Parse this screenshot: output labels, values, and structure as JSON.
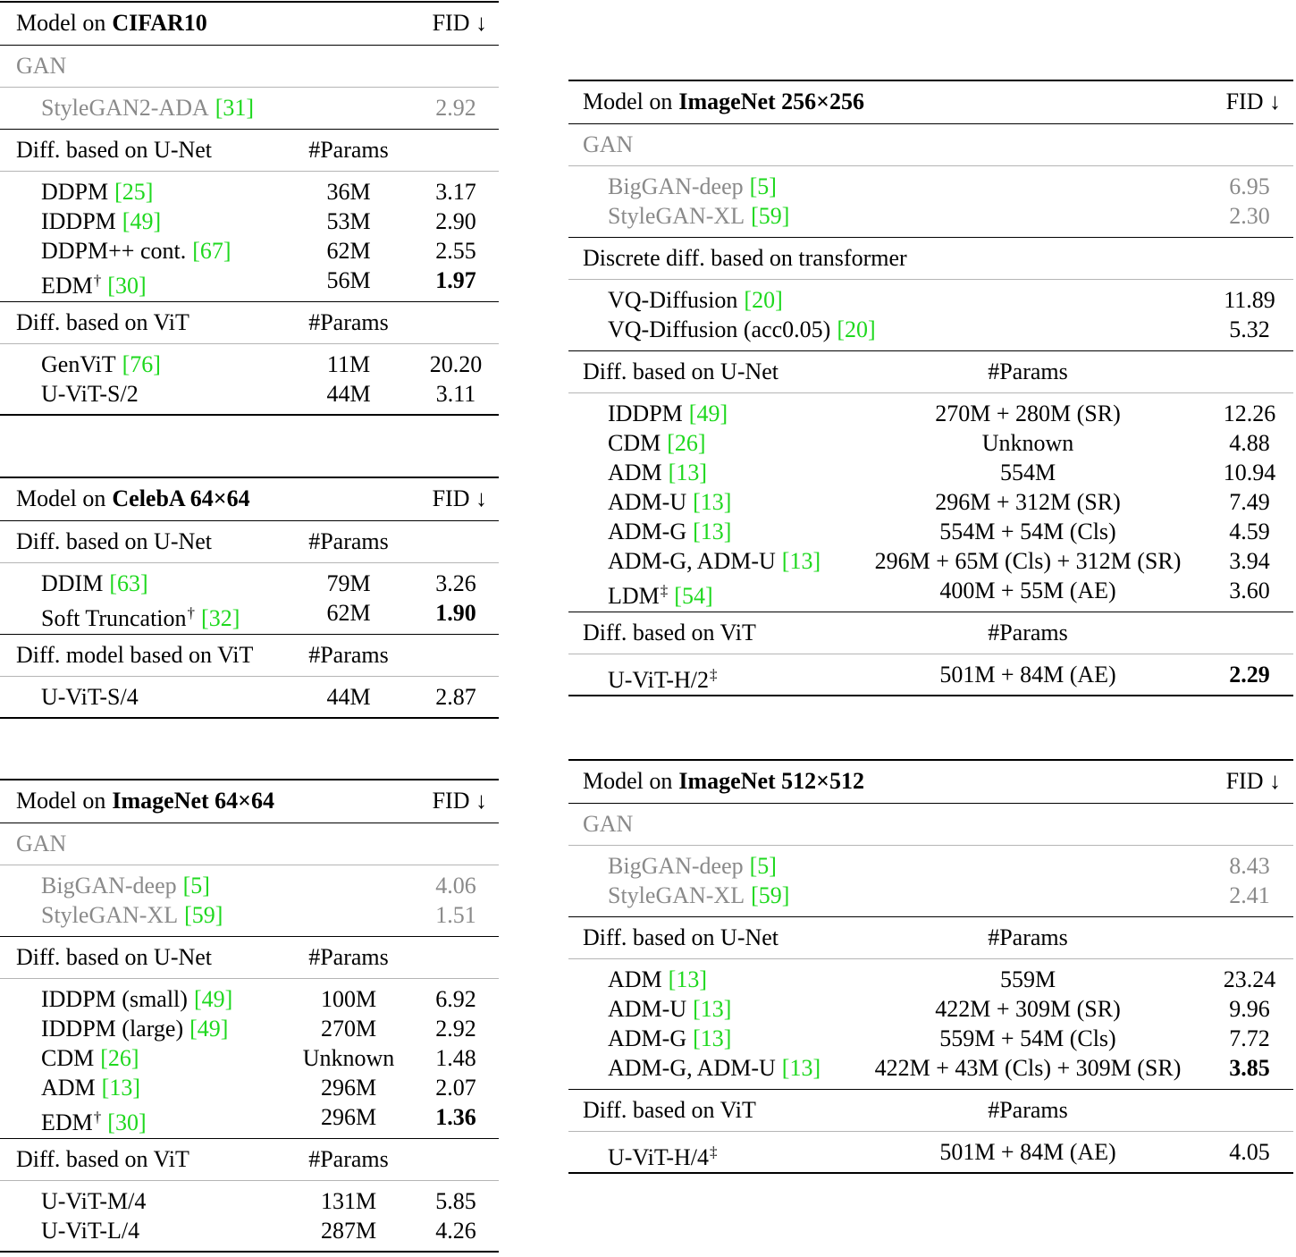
{
  "tables": [
    {
      "prefix": "Model on",
      "dataset": "CIFAR10",
      "metric": "FID ↓",
      "sections": [
        {
          "label": "GAN",
          "gray": true,
          "rows": [
            {
              "name": "StyleGAN2-ADA",
              "ref": "[31]",
              "fid": "2.92"
            }
          ]
        },
        {
          "label": "Diff. based on U-Net",
          "params_label": "#Params",
          "rows": [
            {
              "name": "DDPM",
              "ref": "[25]",
              "params": "36M",
              "fid": "3.17"
            },
            {
              "name": "IDDPM",
              "ref": "[49]",
              "params": "53M",
              "fid": "2.90"
            },
            {
              "name": "DDPM++ cont.",
              "ref": "[67]",
              "params": "62M",
              "fid": "2.55"
            },
            {
              "name": "EDM",
              "sup": "†",
              "ref": "[30]",
              "params": "56M",
              "fid": "1.97",
              "best": true
            }
          ]
        },
        {
          "label": "Diff. based on ViT",
          "params_label": "#Params",
          "rows": [
            {
              "name": "GenViT",
              "ref": "[76]",
              "params": "11M",
              "fid": "20.20"
            },
            {
              "name": "U-ViT-S/2",
              "params": "44M",
              "fid": "3.11"
            }
          ]
        }
      ]
    },
    {
      "prefix": "Model on",
      "dataset": "CelebA 64×64",
      "metric": "FID ↓",
      "sections": [
        {
          "label": "Diff. based on U-Net",
          "params_label": "#Params",
          "rows": [
            {
              "name": "DDIM",
              "ref": "[63]",
              "params": "79M",
              "fid": "3.26"
            },
            {
              "name": "Soft Truncation",
              "sup": "†",
              "ref": "[32]",
              "params": "62M",
              "fid": "1.90",
              "best": true
            }
          ]
        },
        {
          "label": "Diff. model based on ViT",
          "params_label": "#Params",
          "rows": [
            {
              "name": "U-ViT-S/4",
              "params": "44M",
              "fid": "2.87"
            }
          ]
        }
      ]
    },
    {
      "prefix": "Model on",
      "dataset": "ImageNet 64×64",
      "metric": "FID ↓",
      "sections": [
        {
          "label": "GAN",
          "gray": true,
          "rows": [
            {
              "name": "BigGAN-deep",
              "ref": "[5]",
              "fid": "4.06"
            },
            {
              "name": "StyleGAN-XL",
              "ref": "[59]",
              "fid": "1.51"
            }
          ]
        },
        {
          "label": "Diff. based on U-Net",
          "params_label": "#Params",
          "rows": [
            {
              "name": "IDDPM (small)",
              "ref": "[49]",
              "params": "100M",
              "fid": "6.92"
            },
            {
              "name": "IDDPM (large)",
              "ref": "[49]",
              "params": "270M",
              "fid": "2.92"
            },
            {
              "name": "CDM",
              "ref": "[26]",
              "params": "Unknown",
              "fid": "1.48"
            },
            {
              "name": "ADM",
              "ref": "[13]",
              "params": "296M",
              "fid": "2.07"
            },
            {
              "name": "EDM",
              "sup": "†",
              "ref": "[30]",
              "params": "296M",
              "fid": "1.36",
              "best": true
            }
          ]
        },
        {
          "label": "Diff. based on ViT",
          "params_label": "#Params",
          "rows": [
            {
              "name": "U-ViT-M/4",
              "params": "131M",
              "fid": "5.85"
            },
            {
              "name": "U-ViT-L/4",
              "params": "287M",
              "fid": "4.26"
            }
          ]
        }
      ]
    },
    {
      "prefix": "Model on",
      "dataset": "ImageNet 256×256",
      "metric": "FID ↓",
      "sections": [
        {
          "label": "GAN",
          "gray": true,
          "rows": [
            {
              "name": "BigGAN-deep",
              "ref": "[5]",
              "fid": "6.95"
            },
            {
              "name": "StyleGAN-XL",
              "ref": "[59]",
              "fid": "2.30"
            }
          ]
        },
        {
          "label": "Discrete diff. based on transformer",
          "rows": [
            {
              "name": "VQ-Diffusion",
              "ref": "[20]",
              "fid": "11.89"
            },
            {
              "name": "VQ-Diffusion (acc0.05)",
              "ref": "[20]",
              "fid": "5.32"
            }
          ]
        },
        {
          "label": "Diff. based on U-Net",
          "params_label": "#Params",
          "rows": [
            {
              "name": "IDDPM",
              "ref": "[49]",
              "params": "270M + 280M (SR)",
              "fid": "12.26"
            },
            {
              "name": "CDM",
              "ref": "[26]",
              "params": "Unknown",
              "fid": "4.88"
            },
            {
              "name": "ADM",
              "ref": "[13]",
              "params": "554M",
              "fid": "10.94"
            },
            {
              "name": "ADM-U",
              "ref": "[13]",
              "params": "296M + 312M (SR)",
              "fid": "7.49"
            },
            {
              "name": "ADM-G",
              "ref": "[13]",
              "params": "554M + 54M (Cls)",
              "fid": "4.59"
            },
            {
              "name": "ADM-G, ADM-U",
              "ref": "[13]",
              "params": "296M + 65M (Cls) + 312M (SR)",
              "fid": "3.94"
            },
            {
              "name": "LDM",
              "sup": "‡",
              "ref": "[54]",
              "params": "400M + 55M (AE)",
              "fid": "3.60"
            }
          ]
        },
        {
          "label": "Diff. based on ViT",
          "params_label": "#Params",
          "rows": [
            {
              "name": "U-ViT-H/2",
              "sup": "‡",
              "params": "501M + 84M (AE)",
              "fid": "2.29",
              "best": true
            }
          ]
        }
      ]
    },
    {
      "prefix": "Model on",
      "dataset": "ImageNet 512×512",
      "metric": "FID ↓",
      "sections": [
        {
          "label": "GAN",
          "gray": true,
          "rows": [
            {
              "name": "BigGAN-deep",
              "ref": "[5]",
              "fid": "8.43"
            },
            {
              "name": "StyleGAN-XL",
              "ref": "[59]",
              "fid": "2.41"
            }
          ]
        },
        {
          "label": "Diff. based on U-Net",
          "params_label": "#Params",
          "rows": [
            {
              "name": "ADM",
              "ref": "[13]",
              "params": "559M",
              "fid": "23.24"
            },
            {
              "name": "ADM-U",
              "ref": "[13]",
              "params": "422M + 309M (SR)",
              "fid": "9.96"
            },
            {
              "name": "ADM-G",
              "ref": "[13]",
              "params": "559M + 54M (Cls)",
              "fid": "7.72"
            },
            {
              "name": "ADM-G, ADM-U",
              "ref": "[13]",
              "params": "422M + 43M (Cls) + 309M (SR)",
              "fid": "3.85",
              "best": true
            }
          ]
        },
        {
          "label": "Diff. based on ViT",
          "params_label": "#Params",
          "rows": [
            {
              "name": "U-ViT-H/4",
              "sup": "‡",
              "params": "501M + 84M (AE)",
              "fid": "4.05"
            }
          ]
        }
      ]
    }
  ]
}
